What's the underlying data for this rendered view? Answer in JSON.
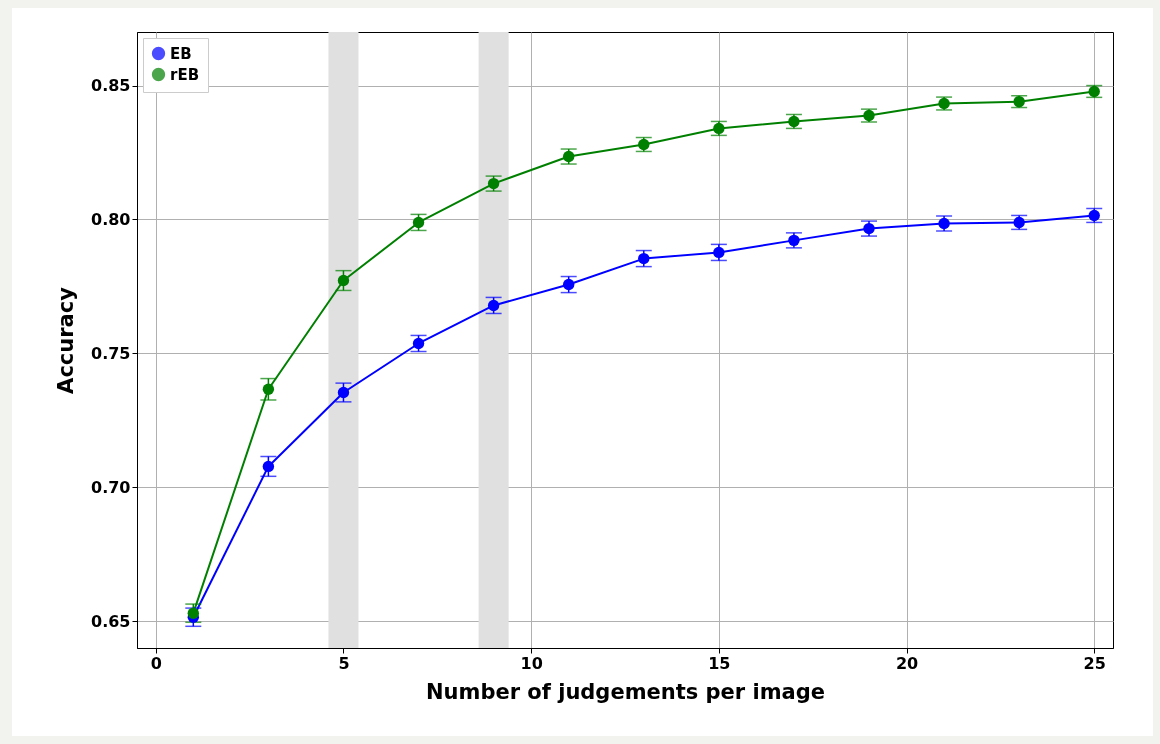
{
  "chart_data": {
    "type": "line",
    "xlabel": "Number of judgements per image",
    "ylabel": "Accuracy",
    "x": [
      1,
      3,
      5,
      7,
      9,
      11,
      13,
      15,
      17,
      19,
      21,
      23,
      25
    ],
    "series": [
      {
        "name": "EB",
        "color": "#0000ff",
        "values": [
          0.6515,
          0.7078,
          0.7354,
          0.7537,
          0.7679,
          0.7757,
          0.7854,
          0.7877,
          0.7922,
          0.7966,
          0.7985,
          0.7989,
          0.8015
        ],
        "errors": [
          0.0034,
          0.0037,
          0.0035,
          0.003,
          0.003,
          0.003,
          0.003,
          0.003,
          0.0028,
          0.0028,
          0.0028,
          0.0026,
          0.0026
        ]
      },
      {
        "name": "rEB",
        "color": "#008000",
        "values": [
          0.653,
          0.7366,
          0.7772,
          0.7989,
          0.8134,
          0.8235,
          0.828,
          0.834,
          0.8366,
          0.8388,
          0.8433,
          0.844,
          0.8478
        ],
        "errors": [
          0.0034,
          0.004,
          0.0037,
          0.003,
          0.0028,
          0.0028,
          0.0026,
          0.0026,
          0.0026,
          0.0024,
          0.0024,
          0.0022,
          0.0022
        ]
      }
    ],
    "bands": [
      {
        "axis": "x",
        "from": 4.6,
        "to": 5.4,
        "color": "#e0e0e0"
      },
      {
        "axis": "x",
        "from": 8.6,
        "to": 9.4,
        "color": "#e0e0e0"
      }
    ],
    "xlim": [
      -0.5,
      25.5
    ],
    "xticks": [
      0,
      5,
      10,
      15,
      20,
      25
    ],
    "ylim": [
      0.64,
      0.87
    ],
    "yticks": [
      0.65,
      {
        "value": 0.7,
        "label": "0.70"
      },
      0.75,
      {
        "value": 0.8,
        "label": "0.80"
      },
      0.85
    ],
    "grid": true,
    "legend": "top left",
    "marker": "circle",
    "line_style": "solid"
  }
}
